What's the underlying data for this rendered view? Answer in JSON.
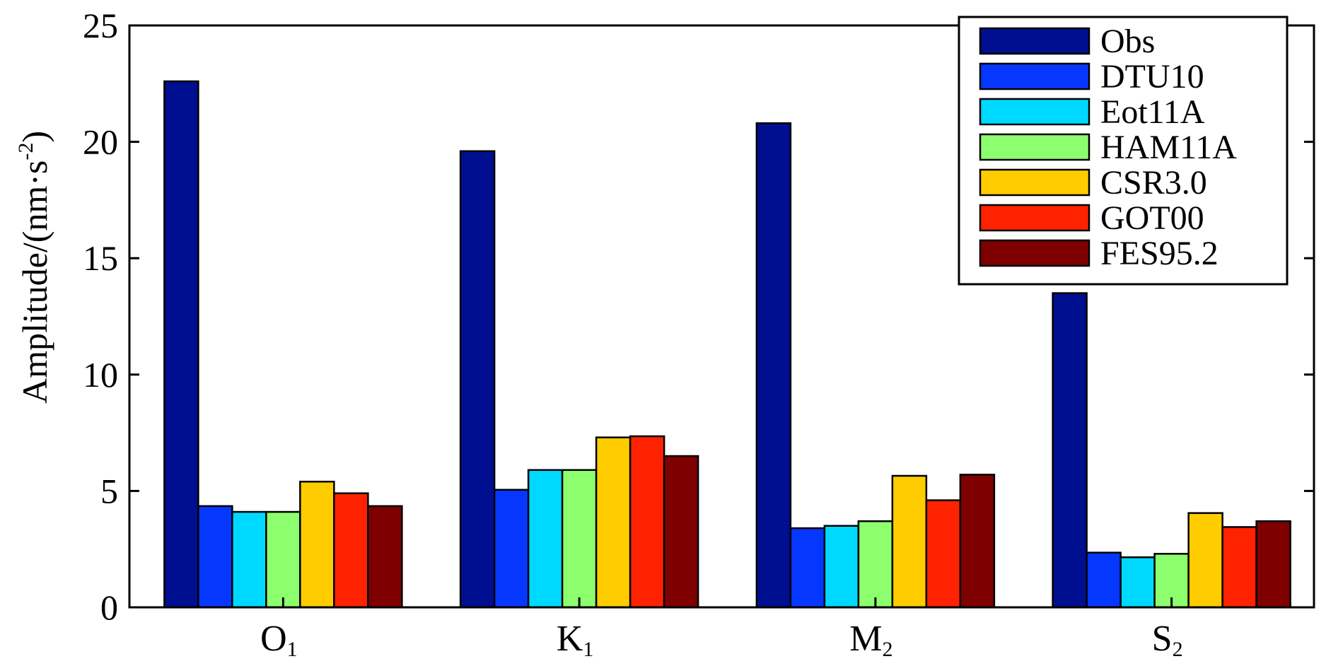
{
  "chart_data": {
    "type": "bar",
    "categories": [
      {
        "main": "O",
        "sub": "1"
      },
      {
        "main": "K",
        "sub": "1"
      },
      {
        "main": "M",
        "sub": "2"
      },
      {
        "main": "S",
        "sub": "2"
      }
    ],
    "series": [
      {
        "name": "Obs",
        "color": "#000f8f",
        "values": [
          22.6,
          19.6,
          20.8,
          13.5
        ]
      },
      {
        "name": "DTU10",
        "color": "#0637ff",
        "values": [
          4.35,
          5.05,
          3.4,
          2.35
        ]
      },
      {
        "name": "Eot11A",
        "color": "#00d9ff",
        "values": [
          4.1,
          5.9,
          3.5,
          2.15
        ]
      },
      {
        "name": "HAM11A",
        "color": "#8dff6e",
        "values": [
          4.1,
          5.9,
          3.7,
          2.3
        ]
      },
      {
        "name": "CSR3.0",
        "color": "#ffcc00",
        "values": [
          5.4,
          7.3,
          5.65,
          4.05
        ]
      },
      {
        "name": "GOT00",
        "color": "#ff2200",
        "values": [
          4.9,
          7.35,
          4.6,
          3.45
        ]
      },
      {
        "name": "FES95.2",
        "color": "#7f0000",
        "values": [
          4.35,
          6.5,
          5.7,
          3.7
        ]
      }
    ],
    "ylabel": {
      "text": "Amplitude/(nm·s",
      "sup": "-2",
      "close": ")"
    },
    "ylim": [
      0,
      25
    ],
    "yticks": [
      "0",
      "5",
      "10",
      "15",
      "20",
      "25"
    ],
    "grid": false,
    "legend_position": "top-right"
  }
}
